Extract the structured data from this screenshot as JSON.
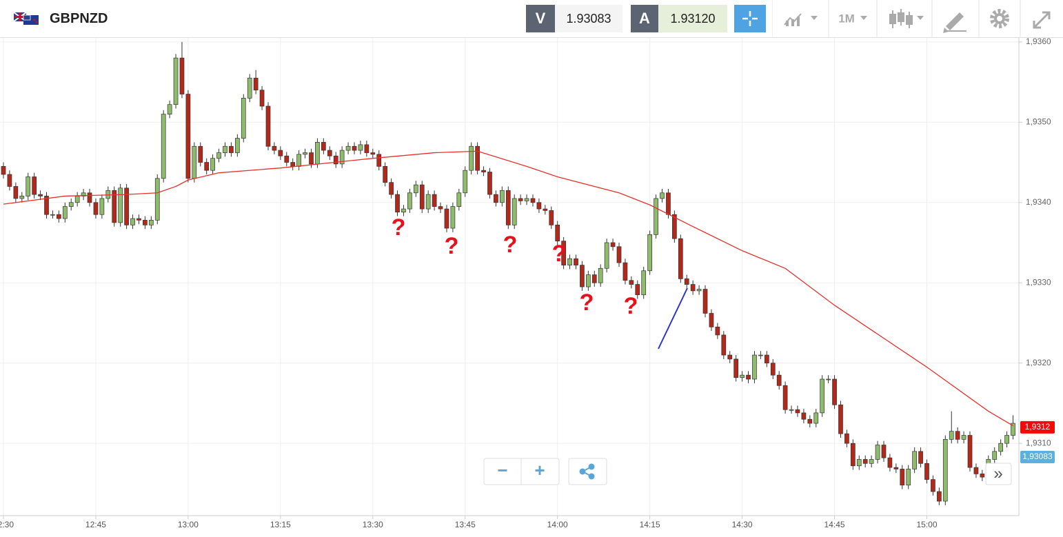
{
  "header": {
    "symbol": "GBPNZD",
    "bid_label": "V",
    "bid": "1.93083",
    "ask_label": "A",
    "ask": "1.93120",
    "timeframe": "1M"
  },
  "chart_data": {
    "type": "candlestick",
    "x": [
      "12:30",
      "12:31",
      "12:32",
      "12:33",
      "12:34",
      "12:35",
      "12:36",
      "12:37",
      "12:38",
      "12:39",
      "12:40",
      "12:41",
      "12:42",
      "12:43",
      "12:44",
      "12:45",
      "12:46",
      "12:47",
      "12:48",
      "12:49",
      "12:50",
      "12:51",
      "12:52",
      "12:53",
      "12:54",
      "12:55",
      "12:56",
      "12:57",
      "12:58",
      "12:59",
      "13:00",
      "13:01",
      "13:02",
      "13:03",
      "13:04",
      "13:05",
      "13:06",
      "13:07",
      "13:08",
      "13:09",
      "13:10",
      "13:11",
      "13:12",
      "13:13",
      "13:14",
      "13:15",
      "13:16",
      "13:17",
      "13:18",
      "13:19",
      "13:20",
      "13:21",
      "13:22",
      "13:23",
      "13:24",
      "13:25",
      "13:26",
      "13:27",
      "13:28",
      "13:29",
      "13:30",
      "13:31",
      "13:32",
      "13:33",
      "13:34",
      "13:35",
      "13:36",
      "13:37",
      "13:38",
      "13:39",
      "13:40",
      "13:41",
      "13:42",
      "13:43",
      "13:44",
      "13:45",
      "13:46",
      "13:47",
      "13:48",
      "13:49",
      "13:50",
      "13:51",
      "13:52",
      "13:53",
      "13:54",
      "13:55",
      "13:56",
      "13:57",
      "13:58",
      "13:59",
      "14:00",
      "14:01",
      "14:02",
      "14:03",
      "14:04",
      "14:05",
      "14:06",
      "14:07",
      "14:08",
      "14:09",
      "14:10",
      "14:11",
      "14:12",
      "14:13",
      "14:14",
      "14:15",
      "14:16",
      "14:17",
      "14:18",
      "14:19",
      "14:20",
      "14:21",
      "14:22",
      "14:23",
      "14:24",
      "14:25",
      "14:26",
      "14:27",
      "14:28",
      "14:29",
      "14:30",
      "14:31",
      "14:32",
      "14:33",
      "14:34",
      "14:35",
      "14:36",
      "14:37",
      "14:38",
      "14:39",
      "14:40",
      "14:41",
      "14:42",
      "14:43",
      "14:44",
      "14:45",
      "14:46",
      "14:47",
      "14:48",
      "14:49",
      "14:50",
      "14:51",
      "14:52",
      "14:53",
      "14:54",
      "14:55",
      "14:56",
      "14:57",
      "14:58",
      "14:59",
      "15:00",
      "15:01",
      "15:02",
      "15:03",
      "15:04",
      "15:05",
      "15:06",
      "15:07",
      "15:08",
      "15:09",
      "15:10",
      "15:11",
      "15:12",
      "15:13",
      "15:14"
    ],
    "open": [
      1.93445,
      1.93435,
      1.9342,
      1.93405,
      1.93408,
      1.93432,
      1.9341,
      1.93408,
      1.93385,
      1.93385,
      1.9338,
      1.93395,
      1.934,
      1.93408,
      1.93412,
      1.934,
      1.93385,
      1.93405,
      1.93415,
      1.93375,
      1.93418,
      1.93372,
      1.9338,
      1.93378,
      1.93372,
      1.93378,
      1.9343,
      1.9351,
      1.93522,
      1.9358,
      1.93535,
      1.9343,
      1.9347,
      1.9345,
      1.9344,
      1.93455,
      1.93462,
      1.9347,
      1.93462,
      1.9348,
      1.9353,
      1.93555,
      1.9354,
      1.9352,
      1.9347,
      1.93465,
      1.93458,
      1.9345,
      1.93445,
      1.9346,
      1.93462,
      1.93448,
      1.93475,
      1.93465,
      1.93458,
      1.93448,
      1.93465,
      1.9347,
      1.93465,
      1.93472,
      1.93462,
      1.9346,
      1.93445,
      1.93425,
      1.9341,
      1.93388,
      1.93392,
      1.93412,
      1.93422,
      1.93392,
      1.9341,
      1.93395,
      1.93392,
      1.93368,
      1.93395,
      1.93412,
      1.9344,
      1.9347,
      1.9344,
      1.93438,
      1.9341,
      1.934,
      1.93415,
      1.93372,
      1.93405,
      1.93402,
      1.93405,
      1.934,
      1.93392,
      1.9339,
      1.93372,
      1.93352,
      1.93322,
      1.9333,
      1.93322,
      1.93295,
      1.9331,
      1.933,
      1.93318,
      1.9335,
      1.93345,
      1.93325,
      1.93303,
      1.93298,
      1.93285,
      1.93315,
      1.9336,
      1.93405,
      1.93412,
      1.93385,
      1.93355,
      1.93305,
      1.93298,
      1.9329,
      1.93292,
      1.93262,
      1.93245,
      1.93235,
      1.9321,
      1.93205,
      1.93182,
      1.93185,
      1.9318,
      1.9321,
      1.9321,
      1.932,
      1.93185,
      1.93172,
      1.93142,
      1.93142,
      1.93138,
      1.9313,
      1.93125,
      1.93138,
      1.9318,
      1.9318,
      1.93148,
      1.93112,
      1.931,
      1.93072,
      1.9308,
      1.93075,
      1.9308,
      1.93098,
      1.93082,
      1.9307,
      1.93068,
      1.93048,
      1.93068,
      1.9309,
      1.93075,
      1.93055,
      1.9304,
      1.93028,
      1.93105,
      1.93115,
      1.93105,
      1.9311,
      1.9307,
      1.93062,
      1.93058,
      1.9308,
      1.9309,
      1.931,
      1.9311
    ],
    "high": [
      1.9345,
      1.9344,
      1.93425,
      1.93413,
      1.93437,
      1.93437,
      1.93415,
      1.93413,
      1.9339,
      1.9339,
      1.934,
      1.93405,
      1.93413,
      1.93417,
      1.93417,
      1.93405,
      1.9341,
      1.9342,
      1.9342,
      1.93423,
      1.93423,
      1.93385,
      1.93385,
      1.93383,
      1.93383,
      1.93435,
      1.93515,
      1.93527,
      1.93585,
      1.936,
      1.9354,
      1.93475,
      1.93475,
      1.93455,
      1.9346,
      1.93467,
      1.93475,
      1.93475,
      1.93485,
      1.93535,
      1.9356,
      1.93565,
      1.93545,
      1.93525,
      1.93475,
      1.9347,
      1.93463,
      1.93455,
      1.93465,
      1.93467,
      1.93467,
      1.9348,
      1.9348,
      1.9347,
      1.93463,
      1.9347,
      1.93475,
      1.93475,
      1.93477,
      1.93477,
      1.93467,
      1.93465,
      1.9345,
      1.9343,
      1.93415,
      1.93397,
      1.93417,
      1.93427,
      1.93427,
      1.93415,
      1.93415,
      1.934,
      1.93397,
      1.934,
      1.93417,
      1.93445,
      1.93475,
      1.93475,
      1.93445,
      1.93443,
      1.93415,
      1.9342,
      1.9342,
      1.9341,
      1.9341,
      1.9341,
      1.9341,
      1.93405,
      1.93397,
      1.93395,
      1.93377,
      1.93357,
      1.93335,
      1.93335,
      1.93327,
      1.93315,
      1.93315,
      1.93323,
      1.93355,
      1.93355,
      1.9335,
      1.9333,
      1.93308,
      1.93303,
      1.9332,
      1.93365,
      1.9341,
      1.93417,
      1.93417,
      1.9339,
      1.9336,
      1.9331,
      1.93303,
      1.93297,
      1.93297,
      1.93267,
      1.9325,
      1.9324,
      1.93215,
      1.9321,
      1.9319,
      1.9319,
      1.93215,
      1.93215,
      1.93215,
      1.93205,
      1.9319,
      1.93177,
      1.93147,
      1.93147,
      1.93143,
      1.93135,
      1.93143,
      1.93185,
      1.93185,
      1.93185,
      1.93153,
      1.93117,
      1.93105,
      1.93085,
      1.93085,
      1.93085,
      1.93103,
      1.93103,
      1.93087,
      1.93075,
      1.93073,
      1.93073,
      1.93095,
      1.93095,
      1.9308,
      1.9306,
      1.93045,
      1.9311,
      1.9314,
      1.9312,
      1.93115,
      1.93115,
      1.93075,
      1.93067,
      1.93085,
      1.93095,
      1.93105,
      1.93115,
      1.93135
    ],
    "low": [
      1.9343,
      1.93415,
      1.934,
      1.934,
      1.93403,
      1.93405,
      1.93403,
      1.9338,
      1.9338,
      1.93375,
      1.93375,
      1.9339,
      1.93395,
      1.93403,
      1.93395,
      1.9338,
      1.9338,
      1.934,
      1.9337,
      1.9337,
      1.93367,
      1.93367,
      1.93373,
      1.93367,
      1.93367,
      1.93373,
      1.93425,
      1.93505,
      1.93517,
      1.9353,
      1.93425,
      1.93425,
      1.93445,
      1.93435,
      1.93435,
      1.9345,
      1.93457,
      1.93457,
      1.93457,
      1.93475,
      1.93525,
      1.93535,
      1.93515,
      1.93465,
      1.9346,
      1.93453,
      1.93445,
      1.9344,
      1.9344,
      1.93455,
      1.93443,
      1.93443,
      1.9346,
      1.93453,
      1.93443,
      1.93443,
      1.9346,
      1.9346,
      1.9346,
      1.93457,
      1.93455,
      1.9344,
      1.9342,
      1.93405,
      1.93383,
      1.93383,
      1.93387,
      1.93407,
      1.93387,
      1.93387,
      1.9339,
      1.93387,
      1.93363,
      1.93363,
      1.9339,
      1.93407,
      1.93435,
      1.93435,
      1.93433,
      1.93405,
      1.93395,
      1.93395,
      1.93367,
      1.93367,
      1.93397,
      1.93397,
      1.93395,
      1.93387,
      1.93385,
      1.93367,
      1.93347,
      1.93317,
      1.93317,
      1.93317,
      1.9329,
      1.9329,
      1.93295,
      1.93295,
      1.93313,
      1.9334,
      1.9332,
      1.93298,
      1.93293,
      1.9328,
      1.9328,
      1.9331,
      1.93355,
      1.934,
      1.9338,
      1.9335,
      1.933,
      1.93293,
      1.93285,
      1.93285,
      1.93257,
      1.9324,
      1.9323,
      1.93205,
      1.932,
      1.93177,
      1.93177,
      1.93175,
      1.93175,
      1.93205,
      1.93195,
      1.9318,
      1.93167,
      1.93137,
      1.93137,
      1.93133,
      1.93125,
      1.9312,
      1.9312,
      1.93133,
      1.93175,
      1.93143,
      1.93107,
      1.93095,
      1.93067,
      1.93067,
      1.9307,
      1.9307,
      1.93075,
      1.93077,
      1.93065,
      1.93063,
      1.93043,
      1.93043,
      1.93063,
      1.9307,
      1.9305,
      1.93035,
      1.93023,
      1.93023,
      1.931,
      1.931,
      1.931,
      1.93065,
      1.93057,
      1.93053,
      1.93053,
      1.93075,
      1.93085,
      1.93095,
      1.93105
    ],
    "close": [
      1.93435,
      1.9342,
      1.93405,
      1.93408,
      1.93432,
      1.9341,
      1.93408,
      1.93385,
      1.93385,
      1.9338,
      1.93395,
      1.934,
      1.93408,
      1.93412,
      1.934,
      1.93385,
      1.93405,
      1.93415,
      1.93375,
      1.93418,
      1.93372,
      1.9338,
      1.93378,
      1.93372,
      1.93378,
      1.9343,
      1.9351,
      1.93522,
      1.9358,
      1.93535,
      1.9343,
      1.9347,
      1.9345,
      1.9344,
      1.93455,
      1.93462,
      1.9347,
      1.93462,
      1.9348,
      1.9353,
      1.93555,
      1.9354,
      1.9352,
      1.9347,
      1.93465,
      1.93458,
      1.9345,
      1.93445,
      1.9346,
      1.93462,
      1.93448,
      1.93475,
      1.93465,
      1.93458,
      1.93448,
      1.93465,
      1.9347,
      1.93465,
      1.93472,
      1.93462,
      1.9346,
      1.93445,
      1.93425,
      1.9341,
      1.93388,
      1.93392,
      1.93412,
      1.93422,
      1.93392,
      1.9341,
      1.93395,
      1.93392,
      1.93368,
      1.93395,
      1.93412,
      1.9344,
      1.9347,
      1.9344,
      1.93438,
      1.9341,
      1.934,
      1.93415,
      1.93372,
      1.93405,
      1.93402,
      1.93405,
      1.934,
      1.93392,
      1.9339,
      1.93372,
      1.93352,
      1.93322,
      1.9333,
      1.93322,
      1.93295,
      1.9331,
      1.933,
      1.93318,
      1.9335,
      1.93345,
      1.93325,
      1.93303,
      1.93298,
      1.93285,
      1.93315,
      1.9336,
      1.93405,
      1.93412,
      1.93385,
      1.93355,
      1.93305,
      1.93298,
      1.9329,
      1.93292,
      1.93262,
      1.93245,
      1.93235,
      1.9321,
      1.93205,
      1.93182,
      1.93185,
      1.9318,
      1.9321,
      1.9321,
      1.932,
      1.93185,
      1.93172,
      1.93142,
      1.93142,
      1.93138,
      1.9313,
      1.93125,
      1.93138,
      1.9318,
      1.9318,
      1.93148,
      1.93112,
      1.931,
      1.93072,
      1.9308,
      1.93075,
      1.9308,
      1.93098,
      1.93082,
      1.9307,
      1.93068,
      1.93048,
      1.93068,
      1.9309,
      1.93075,
      1.93055,
      1.9304,
      1.93028,
      1.93105,
      1.93115,
      1.93105,
      1.9311,
      1.9307,
      1.93062,
      1.93058,
      1.9308,
      1.9309,
      1.931,
      1.9311,
      1.93125
    ],
    "up_color": "#8fbc6c",
    "down_color": "#b0291a",
    "ylim": [
      1.9301,
      1.93605
    ],
    "yticks": [
      {
        "value": 1.931,
        "label": "1,9310"
      },
      {
        "value": 1.932,
        "label": "1,9320"
      },
      {
        "value": 1.933,
        "label": "1,9330"
      },
      {
        "value": 1.934,
        "label": "1,9340"
      },
      {
        "value": 1.935,
        "label": "1,9350"
      },
      {
        "value": 1.936,
        "label": "1,9360"
      }
    ],
    "xticks": [
      "12:30",
      "12:45",
      "13:00",
      "13:15",
      "13:30",
      "13:45",
      "14:00",
      "14:15",
      "14:30",
      "14:45",
      "15:00"
    ],
    "grid": true,
    "moving_average": {
      "color": "#e8302a",
      "x": [
        "12:30",
        "12:40",
        "12:50",
        "12:55",
        "12:58",
        "13:00",
        "13:05",
        "13:15",
        "13:30",
        "13:40",
        "13:47",
        "13:55",
        "14:00",
        "14:10",
        "14:15",
        "14:22",
        "14:30",
        "14:37",
        "14:45",
        "15:00",
        "15:10",
        "15:14"
      ],
      "values": [
        1.93398,
        1.93408,
        1.9341,
        1.93412,
        1.9342,
        1.93428,
        1.93437,
        1.93443,
        1.93455,
        1.93462,
        1.93464,
        1.93445,
        1.93432,
        1.93412,
        1.93397,
        1.9337,
        1.9334,
        1.93318,
        1.93272,
        1.93195,
        1.9314,
        1.93122
      ]
    },
    "price_tags": [
      {
        "label": "1,9312",
        "value": 1.9312,
        "color": "#f00a0a"
      },
      {
        "label": "1,93083",
        "value": 1.93083,
        "color": "#5bb0de"
      }
    ],
    "annotations": [
      "?",
      "?",
      "?",
      "?",
      "?",
      "?"
    ]
  },
  "controls": {
    "zoom_out": "−",
    "zoom_in": "+",
    "scroll": "»"
  }
}
